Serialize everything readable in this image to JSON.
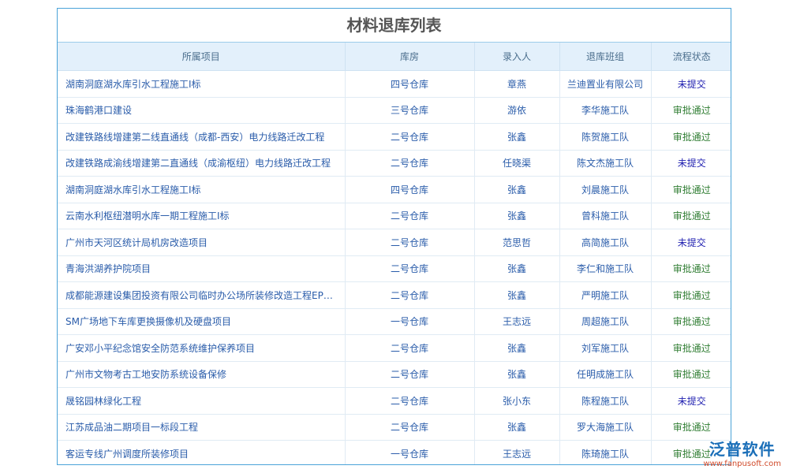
{
  "title": "材料退库列表",
  "columns": [
    "所属项目",
    "库房",
    "录入人",
    "退库班组",
    "流程状态"
  ],
  "rows": [
    [
      "湖南洞庭湖水库引水工程施工I标",
      "四号仓库",
      "章燕",
      "兰迪置业有限公司",
      "未提交"
    ],
    [
      "珠海鹤港口建设",
      "三号仓库",
      "游依",
      "李华施工队",
      "审批通过"
    ],
    [
      "改建铁路线增建第二线直通线（成都-西安）电力线路迁改工程",
      "二号仓库",
      "张鑫",
      "陈贺施工队",
      "审批通过"
    ],
    [
      "改建铁路成渝线增建第二直通线（成渝枢纽）电力线路迁改工程",
      "二号仓库",
      "任晓渠",
      "陈文杰施工队",
      "未提交"
    ],
    [
      "湖南洞庭湖水库引水工程施工I标",
      "四号仓库",
      "张鑫",
      "刘晨施工队",
      "审批通过"
    ],
    [
      "云南水利枢纽潜明水库一期工程施工I标",
      "二号仓库",
      "张鑫",
      "曾科施工队",
      "审批通过"
    ],
    [
      "广州市天河区统计局机房改造项目",
      "二号仓库",
      "范思哲",
      "高简施工队",
      "未提交"
    ],
    [
      "青海洪湖养护院项目",
      "二号仓库",
      "张鑫",
      "李仁和施工队",
      "审批通过"
    ],
    [
      "成都能源建设集团投资有限公司临时办公场所装修改造工程EPC...",
      "二号仓库",
      "张鑫",
      "严明施工队",
      "审批通过"
    ],
    [
      "SM广场地下车库更换摄像机及硬盘项目",
      "一号仓库",
      "王志远",
      "周超施工队",
      "审批通过"
    ],
    [
      "广安邓小平纪念馆安全防范系统维护保养项目",
      "二号仓库",
      "张鑫",
      "刘军施工队",
      "审批通过"
    ],
    [
      "广州市文物考古工地安防系统设备保修",
      "二号仓库",
      "张鑫",
      "任明成施工队",
      "审批通过"
    ],
    [
      "晟铭园林绿化工程",
      "二号仓库",
      "张小东",
      "陈程施工队",
      "未提交"
    ],
    [
      "江苏成品油二期项目一标段工程",
      "二号仓库",
      "张鑫",
      "罗大海施工队",
      "审批通过"
    ],
    [
      "客运专线广州调度所装修项目",
      "一号仓库",
      "王志远",
      "陈琦施工队",
      "审批通过"
    ]
  ],
  "watermark": {
    "name": "泛普软件",
    "url": "www.fanpusoft.com"
  }
}
